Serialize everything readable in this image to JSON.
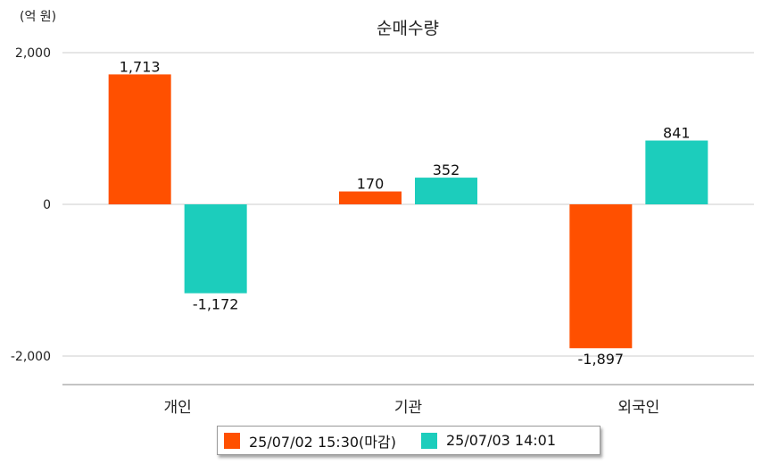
{
  "chart_data": {
    "type": "bar",
    "title": "순매수량",
    "unit_label": "(억 원)",
    "categories": [
      "개인",
      "기관",
      "외국인"
    ],
    "series": [
      {
        "name": "25/07/02 15:30(마감)",
        "color": "#FF5000",
        "values": [
          1713,
          170,
          -1897
        ]
      },
      {
        "name": "25/07/03 14:01",
        "color": "#1CCDBC",
        "values": [
          -1172,
          352,
          841
        ]
      }
    ],
    "value_labels": [
      [
        "1,713",
        "170",
        "-1,897"
      ],
      [
        "-1,172",
        "352",
        "841"
      ]
    ],
    "yticks": [
      2000,
      0,
      -2000
    ],
    "ytick_labels": [
      "2,000",
      "0",
      "-2,000"
    ],
    "ylim": [
      -2400,
      2000
    ],
    "grid": true,
    "legend_position": "bottom"
  }
}
